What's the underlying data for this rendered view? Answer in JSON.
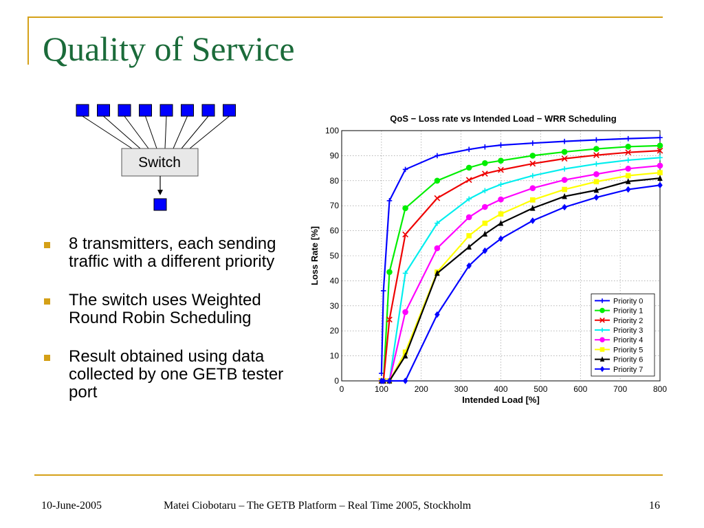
{
  "slide": {
    "title": "Quality of Service",
    "accent_color": "#d4a017",
    "title_color": "#1b6b3a",
    "bullet_color": "#d4a017"
  },
  "diagram": {
    "switch_label": "Switch",
    "transmitter_count": 8,
    "box_color": "#0000ff"
  },
  "bullets": [
    "8 transmitters, each sending traffic with a different priority",
    "The switch uses Weighted Round Robin Scheduling",
    "Result obtained using data collected by one GETB tester port"
  ],
  "footer": {
    "date": "10-June-2005",
    "center": "Matei Ciobotaru – The GETB Platform – Real Time 2005, Stockholm",
    "page": "16"
  },
  "chart_data": {
    "type": "line",
    "title": "QoS − Loss rate vs Intended Load − WRR Scheduling",
    "xlabel": "Intended Load [%]",
    "ylabel": "Loss Rate [%]",
    "xlim": [
      0,
      800
    ],
    "ylim": [
      0,
      100
    ],
    "xticks": [
      0,
      100,
      200,
      300,
      400,
      500,
      600,
      700,
      800
    ],
    "yticks": [
      0,
      10,
      20,
      30,
      40,
      50,
      60,
      70,
      80,
      90,
      100
    ],
    "grid": true,
    "legend_position": "bottom-right",
    "x": [
      100,
      105,
      120,
      160,
      240,
      320,
      360,
      400,
      480,
      560,
      640,
      720,
      800
    ],
    "series": [
      {
        "name": "Priority 0",
        "color": "#0000ff",
        "marker": "plus",
        "values": [
          3,
          36,
          72,
          84.5,
          90,
          92.5,
          93.5,
          94.2,
          95,
          95.7,
          96.3,
          96.8,
          97.2
        ]
      },
      {
        "name": "Priority 1",
        "color": "#00ee00",
        "marker": "circle",
        "values": [
          0,
          0,
          43.5,
          69,
          80,
          85.2,
          87,
          88,
          90,
          91.5,
          92.7,
          93.6,
          94
        ]
      },
      {
        "name": "Priority 2",
        "color": "#ee0000",
        "marker": "x",
        "values": [
          0,
          0,
          24.5,
          58.5,
          73,
          80.3,
          82.8,
          84.3,
          86.8,
          88.8,
          90.2,
          91.3,
          92
        ]
      },
      {
        "name": "Priority 3",
        "color": "#00eeee",
        "marker": "plus",
        "values": [
          0,
          0,
          0,
          43,
          63,
          72.7,
          76,
          78.5,
          82,
          84.7,
          86.7,
          88.2,
          89.2
        ]
      },
      {
        "name": "Priority 4",
        "color": "#ff00ff",
        "marker": "circle",
        "values": [
          0,
          0,
          0,
          27.5,
          53,
          65.4,
          69.5,
          72.5,
          77,
          80.3,
          82.6,
          84.8,
          86
        ]
      },
      {
        "name": "Priority 5",
        "color": "#ffff00",
        "marker": "square",
        "values": [
          0,
          0,
          0,
          11.5,
          43.5,
          58,
          63,
          66.7,
          72.3,
          76.5,
          79.6,
          82,
          83.2
        ]
      },
      {
        "name": "Priority 6",
        "color": "#000000",
        "marker": "triangle",
        "values": [
          0,
          0,
          0,
          10,
          43,
          53.5,
          58.7,
          63,
          69,
          73.7,
          76.2,
          79.7,
          81
        ]
      },
      {
        "name": "Priority 7",
        "color": "#0000ff",
        "marker": "diamond",
        "values": [
          0,
          0,
          0,
          0,
          26.5,
          46,
          52,
          56.8,
          64,
          69.4,
          73.3,
          76.5,
          78.2
        ]
      }
    ]
  }
}
